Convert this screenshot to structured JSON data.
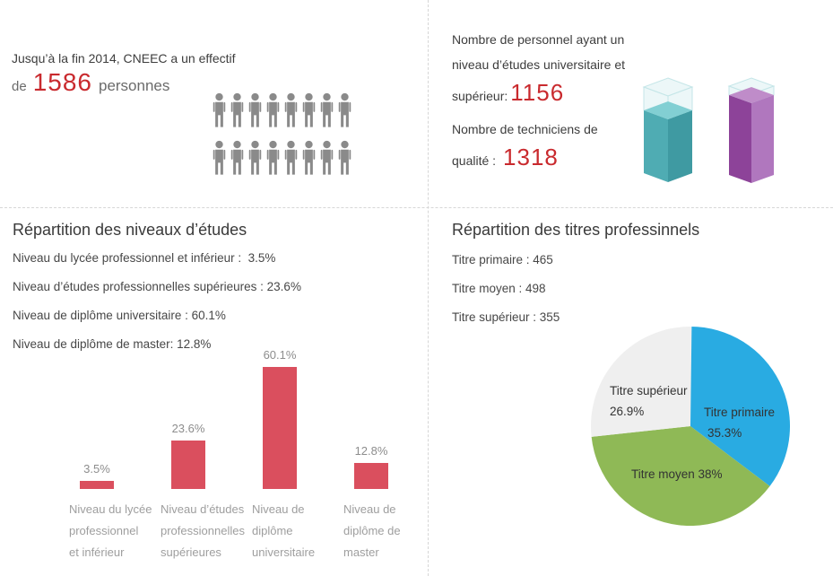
{
  "colors": {
    "red_accent": "#c92a2e",
    "bar_red": "#da4f5e",
    "pie_blue": "#29abe2",
    "pie_green": "#8fb956",
    "pie_gray": "#efefef",
    "teal_left": "#4facb3",
    "teal_right": "#3f9aa2",
    "teal_top": "#82cfd3",
    "purple_left": "#8d4399",
    "purple_right": "#b077be",
    "purple_top": "#bf8cc9",
    "people_gray": "#8a8a8a",
    "divider_gray": "#d6d6d6"
  },
  "top_left": {
    "line1": "Jusqu’à la fin 2014, CNEEC a un effectif",
    "count_prefix": "de",
    "headcount": "1586",
    "count_suffix": "personnes",
    "people_icon_count": 16
  },
  "top_right": {
    "line1": "Nombre de personnel ayant un",
    "line2": "niveau d’études universitaire et",
    "line3_prefix": "supérieur:",
    "value1": "1156",
    "line4": "Nombre de techniciens de",
    "line5_prefix": "qualité :",
    "value2": "1318"
  },
  "bottom_left": {
    "stat_lines": [
      "Niveau du lycée professionnel et inférieur :  3.5%",
      "Niveau d’études professionnelles supérieures : 23.6%",
      "Niveau de diplôme universitaire : 60.1%",
      "Niveau de diplôme de master: 12.8%"
    ]
  },
  "bottom_right": {
    "stat_lines": [
      "Titre primaire : 465",
      "Titre moyen : 498",
      "Titre supérieur : 355"
    ]
  },
  "chart_data": [
    {
      "type": "bar",
      "title": "Répartition des niveaux d’études",
      "categories": [
        "Niveau du lycée professionnel et inférieur",
        "Niveau d’études professionnelles supérieures",
        "Niveau de diplôme universitaire",
        "Niveau de diplôme de master"
      ],
      "category_lines": [
        [
          "Niveau du lycée",
          "professionnel",
          "et inférieur"
        ],
        [
          "Niveau d’études",
          "professionnelles",
          "supérieures"
        ],
        [
          "Niveau de",
          "diplôme",
          "universitaire"
        ],
        [
          "Niveau de",
          "diplôme de",
          "master"
        ]
      ],
      "values": [
        3.5,
        23.6,
        60.1,
        12.8
      ],
      "unit": "%",
      "bar_color": "#da4f5e",
      "xlabel": "",
      "ylabel": "",
      "ylim": [
        0,
        65
      ],
      "grid": false,
      "legend": false
    },
    {
      "type": "pie",
      "title": "Répartition des titres professinnels",
      "labels": [
        "Titre primaire",
        "Titre moyen",
        "Titre supérieur"
      ],
      "values": [
        35.3,
        38,
        26.9
      ],
      "counts": [
        465,
        498,
        355
      ],
      "colors": [
        "#29abe2",
        "#8fb956",
        "#efefef"
      ],
      "start_angle_deg": 0,
      "direction": "clockwise",
      "annotations": [
        [
          "Titre primaire",
          "35.3%"
        ],
        [
          "Titre moyen 38%"
        ],
        [
          "Titre supérieur",
          "26.9%"
        ]
      ]
    },
    {
      "type": "bar",
      "title": "",
      "note": "decorative 3d columns for headcounts",
      "categories": [
        "Niveau d’études universitaire et supérieur",
        "Techniciens de qualité"
      ],
      "values": [
        1156,
        1318
      ],
      "total": 1586,
      "colors": [
        "teal",
        "purple"
      ]
    }
  ]
}
